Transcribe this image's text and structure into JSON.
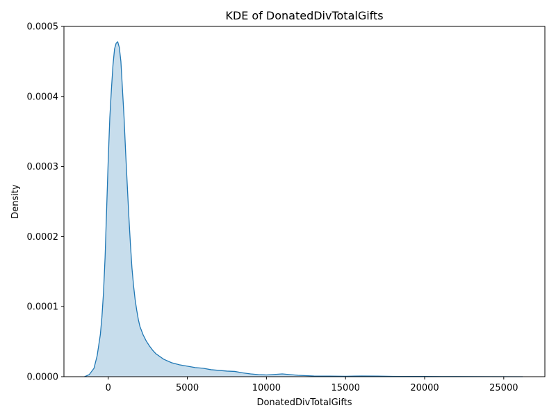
{
  "chart_data": {
    "type": "area",
    "title": "KDE of DonatedDivTotalGifts",
    "xlabel": "DonatedDivTotalGifts",
    "ylabel": "Density",
    "xlim": [
      -2800,
      27600
    ],
    "ylim": [
      0,
      0.0005
    ],
    "xticks": [
      0,
      5000,
      10000,
      15000,
      20000,
      25000
    ],
    "xtick_labels": [
      "0",
      "5000",
      "10000",
      "15000",
      "20000",
      "25000"
    ],
    "yticks": [
      0,
      0.0001,
      0.0002,
      0.0003,
      0.0004,
      0.0005
    ],
    "ytick_labels": [
      "0.0000",
      "0.0001",
      "0.0002",
      "0.0003",
      "0.0004",
      "0.0005"
    ],
    "grid": false,
    "color": "#1f77b4",
    "fill_opacity": 0.25,
    "x": [
      -1500,
      -1200,
      -900,
      -700,
      -500,
      -400,
      -300,
      -200,
      -100,
      0,
      100,
      200,
      300,
      400,
      500,
      600,
      700,
      800,
      900,
      1000,
      1100,
      1200,
      1300,
      1400,
      1500,
      1600,
      1700,
      1800,
      1900,
      2000,
      2200,
      2400,
      2600,
      2800,
      3000,
      3500,
      4000,
      4500,
      5000,
      5500,
      6000,
      6500,
      7000,
      7500,
      8000,
      8500,
      9000,
      9500,
      10000,
      11000,
      12000,
      13000,
      14000,
      15000,
      16000,
      17000,
      18000,
      19000,
      20000,
      22000,
      24000,
      26200
    ],
    "y": [
      0,
      3e-06,
      1.2e-05,
      3e-05,
      6e-05,
      8.5e-05,
      0.00012,
      0.00017,
      0.00024,
      0.00031,
      0.00037,
      0.00041,
      0.000445,
      0.000468,
      0.000476,
      0.000478,
      0.00047,
      0.00045,
      0.00041,
      0.00037,
      0.00032,
      0.000275,
      0.00023,
      0.00019,
      0.000155,
      0.00013,
      0.00011,
      9.5e-05,
      8.2e-05,
      7.2e-05,
      6e-05,
      5.1e-05,
      4.4e-05,
      3.8e-05,
      3.3e-05,
      2.5e-05,
      2e-05,
      1.7e-05,
      1.5e-05,
      1.3e-05,
      1.2e-05,
      1e-05,
      9e-06,
      8e-06,
      7.5e-06,
      5.5e-06,
      4e-06,
      3e-06,
      2.5e-06,
      4e-06,
      2e-06,
      1e-06,
      8e-07,
      6e-07,
      1e-06,
      8e-07,
      5e-07,
      4e-07,
      3e-07,
      2e-07,
      1e-07,
      0
    ]
  }
}
